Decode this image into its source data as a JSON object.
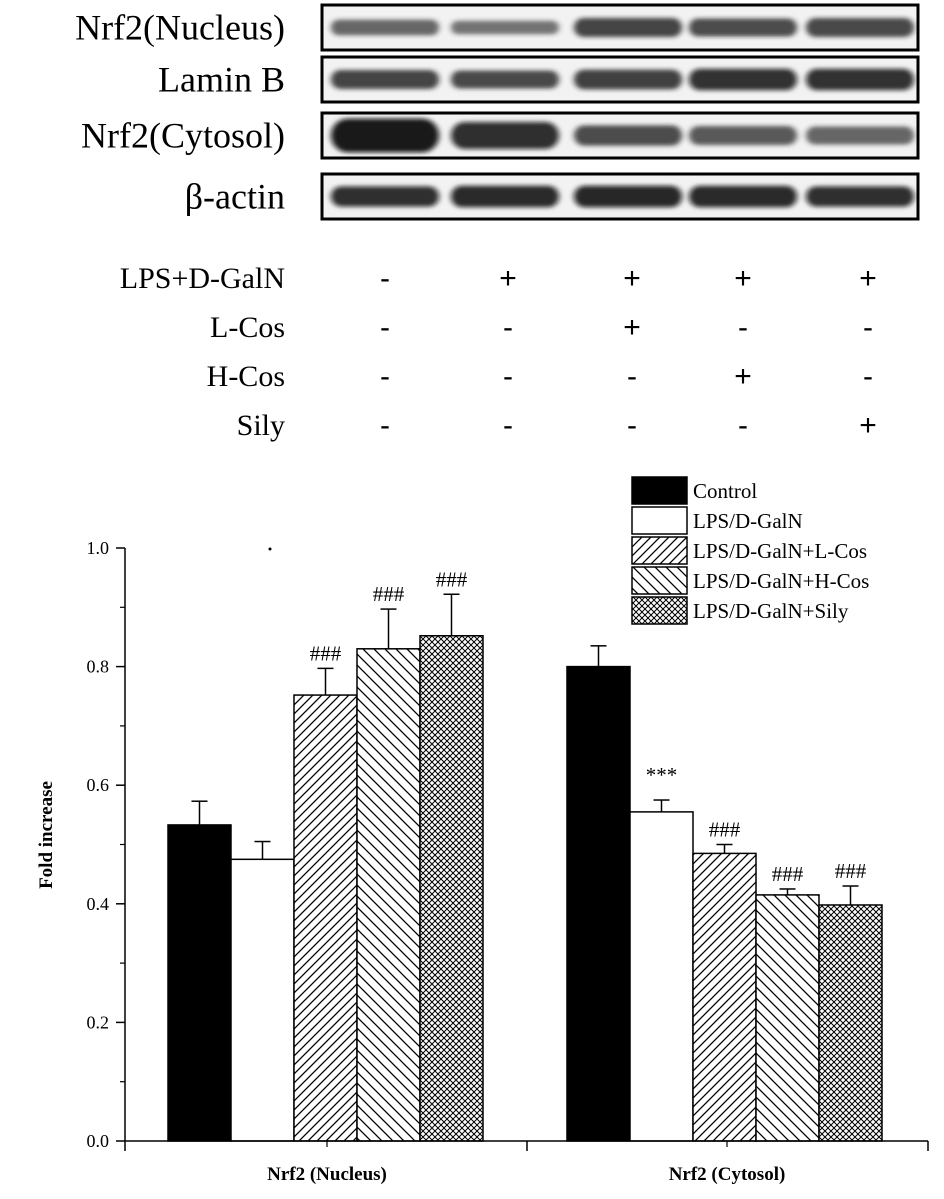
{
  "blot": {
    "rows": [
      {
        "label": "Nrf2(Nucleus)",
        "intensity": [
          0.55,
          0.45,
          0.75,
          0.7,
          0.72
        ],
        "thickness": [
          0.35,
          0.3,
          0.42,
          0.4,
          0.42
        ]
      },
      {
        "label": "Lamin B",
        "intensity": [
          0.75,
          0.72,
          0.78,
          0.82,
          0.82
        ],
        "thickness": [
          0.42,
          0.4,
          0.44,
          0.48,
          0.48
        ]
      },
      {
        "label": "Nrf2(Cytosol)",
        "intensity": [
          1.0,
          0.85,
          0.7,
          0.6,
          0.55
        ],
        "thickness": [
          0.75,
          0.6,
          0.45,
          0.42,
          0.4
        ]
      },
      {
        "label": "β-actin",
        "intensity": [
          0.85,
          0.88,
          0.9,
          0.88,
          0.85
        ],
        "thickness": [
          0.45,
          0.48,
          0.48,
          0.48,
          0.45
        ]
      }
    ]
  },
  "treatment_table": {
    "rows": [
      {
        "label": "LPS+D-GalN",
        "signs": [
          "-",
          "+",
          "+",
          "+",
          "+"
        ]
      },
      {
        "label": "L-Cos",
        "signs": [
          "-",
          "-",
          "+",
          "-",
          "-"
        ]
      },
      {
        "label": "H-Cos",
        "signs": [
          "-",
          "-",
          "-",
          "+",
          "-"
        ]
      },
      {
        "label": "Sily",
        "signs": [
          "-",
          "-",
          "-",
          "-",
          "+"
        ]
      }
    ]
  },
  "chart_data": {
    "type": "bar",
    "categories": [
      "Nrf2 (Nucleus)",
      "Nrf2 (Cytosol)"
    ],
    "ylabel": "Fold increase",
    "ylim": [
      0.0,
      1.0
    ],
    "yticks": [
      "0.0",
      "0.2",
      "0.4",
      "0.6",
      "0.8",
      "1.0"
    ],
    "legend_position": "top-right",
    "series": [
      {
        "name": "Control",
        "pattern": "solid",
        "values": [
          0.533,
          0.8
        ],
        "errors": [
          0.04,
          0.035
        ],
        "annotations": [
          "",
          ""
        ]
      },
      {
        "name": "LPS/D-GalN",
        "pattern": "empty",
        "values": [
          0.475,
          0.555
        ],
        "errors": [
          0.03,
          0.02
        ],
        "annotations": [
          "",
          "***"
        ]
      },
      {
        "name": "LPS/D-GalN+L-Cos",
        "pattern": "diag-right",
        "values": [
          0.752,
          0.485
        ],
        "errors": [
          0.045,
          0.015
        ],
        "annotations": [
          "###",
          "###"
        ]
      },
      {
        "name": "LPS/D-GalN+H-Cos",
        "pattern": "diag-left",
        "values": [
          0.83,
          0.415
        ],
        "errors": [
          0.067,
          0.01
        ],
        "annotations": [
          "###",
          "###"
        ]
      },
      {
        "name": "LPS/D-GalN+Sily",
        "pattern": "crosshatch",
        "values": [
          0.852,
          0.398
        ],
        "errors": [
          0.07,
          0.032
        ],
        "annotations": [
          "###",
          "###"
        ]
      }
    ]
  }
}
